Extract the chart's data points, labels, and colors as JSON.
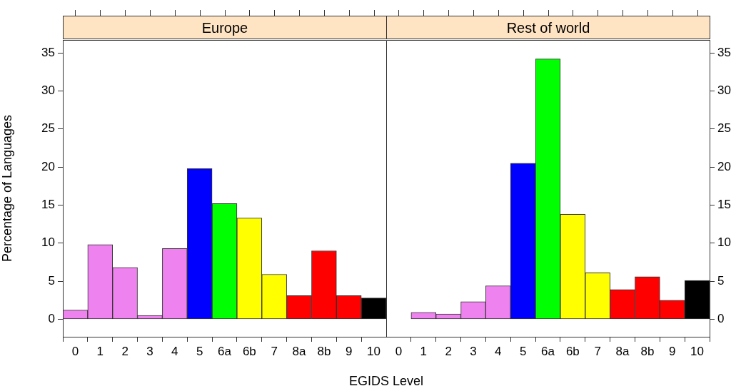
{
  "chart_data": [
    {
      "type": "bar",
      "title": "Europe",
      "xlabel": "EGIDS Level",
      "ylabel": "Percentage of Languages",
      "categories": [
        "0",
        "1",
        "2",
        "3",
        "4",
        "5",
        "6a",
        "6b",
        "7",
        "8a",
        "8b",
        "9",
        "10"
      ],
      "values": [
        1.2,
        9.8,
        6.8,
        0.5,
        9.3,
        19.8,
        15.2,
        13.3,
        5.9,
        3.1,
        9.0,
        3.1,
        2.8
      ],
      "colors": [
        "#ee82ee",
        "#ee82ee",
        "#ee82ee",
        "#ee82ee",
        "#ee82ee",
        "#0000ff",
        "#00ff00",
        "#ffff00",
        "#ffff00",
        "#ff0000",
        "#ff0000",
        "#ff0000",
        "#000000"
      ],
      "ylim": [
        -2.3,
        36.7
      ],
      "yticks": [
        0,
        5,
        10,
        15,
        20,
        25,
        30,
        35
      ]
    },
    {
      "type": "bar",
      "title": "Rest of world",
      "categories": [
        "0",
        "1",
        "2",
        "3",
        "4",
        "5",
        "6a",
        "6b",
        "7",
        "8a",
        "8b",
        "9",
        "10"
      ],
      "values": [
        0,
        0.9,
        0.7,
        2.3,
        4.4,
        20.5,
        34.2,
        13.8,
        6.1,
        3.9,
        5.6,
        2.5,
        5.1
      ],
      "colors": [
        "#ee82ee",
        "#ee82ee",
        "#ee82ee",
        "#ee82ee",
        "#ee82ee",
        "#0000ff",
        "#00ff00",
        "#ffff00",
        "#ffff00",
        "#ff0000",
        "#ff0000",
        "#ff0000",
        "#000000"
      ],
      "ylim": [
        -2.3,
        36.7
      ],
      "yticks": [
        0,
        5,
        10,
        15,
        20,
        25,
        30,
        35
      ]
    }
  ]
}
